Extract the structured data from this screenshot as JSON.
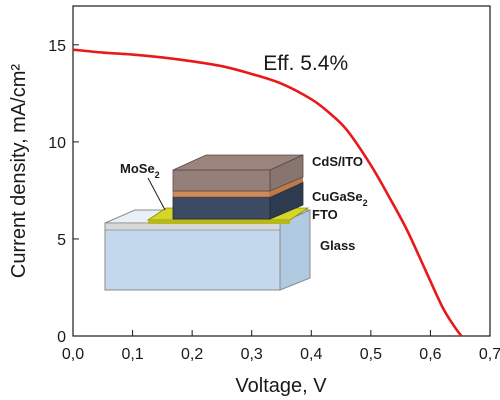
{
  "chart_data": {
    "type": "line",
    "xlabel": "Voltage, V",
    "ylabel": "Current density, mA/cm²",
    "xlim": [
      0,
      0.7
    ],
    "ylim": [
      0,
      17
    ],
    "x_ticks": [
      0,
      0.1,
      0.2,
      0.3,
      0.4,
      0.5,
      0.6,
      0.7
    ],
    "x_tick_labels": [
      "0,0",
      "0,1",
      "0,2",
      "0,3",
      "0,4",
      "0,5",
      "0,6",
      "0,7"
    ],
    "y_ticks": [
      0,
      5,
      10,
      15
    ],
    "y_tick_labels": [
      "0",
      "5",
      "10",
      "15"
    ],
    "grid": false,
    "series": [
      {
        "color": "#e8191a",
        "x": [
          0,
          0.05,
          0.1,
          0.15,
          0.2,
          0.25,
          0.3,
          0.35,
          0.4,
          0.43,
          0.46,
          0.5,
          0.53,
          0.56,
          0.59,
          0.62,
          0.64,
          0.652
        ],
        "y": [
          14.75,
          14.6,
          14.5,
          14.35,
          14.15,
          13.9,
          13.5,
          13.0,
          12.2,
          11.5,
          10.6,
          8.8,
          7.2,
          5.5,
          3.5,
          1.5,
          0.5,
          0
        ]
      }
    ],
    "annotations": [
      {
        "text": "Eff. 5.4%",
        "x": 0.4,
        "y": 13.7
      }
    ],
    "inset": {
      "layers": [
        "CdS/ITO",
        "CuGaSe",
        "FTO",
        "Glass"
      ],
      "contact": "MoSe",
      "subscript": "2",
      "colors": {
        "glass": "#a9c8e6",
        "fto": "#d8d8d8",
        "mose2": "#d4d62a",
        "cugase2": "#3c4a63",
        "cds": "#d08a5a",
        "ito": "#7a6058"
      }
    }
  }
}
